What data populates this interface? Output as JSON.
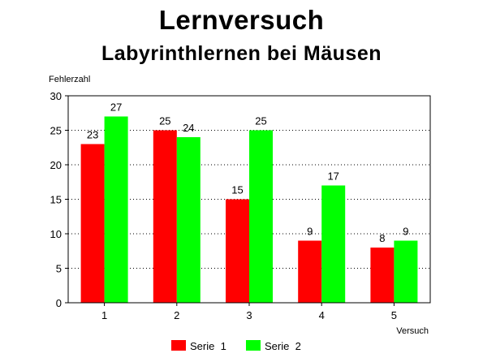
{
  "chart_data": {
    "type": "bar",
    "title": "Lernversuch",
    "subtitle": "Labyrinthlernen bei Mäusen",
    "ylabel": "Fehlerzahl",
    "xlabel": "Versuch",
    "categories": [
      "1",
      "2",
      "3",
      "4",
      "5"
    ],
    "ylim": [
      0,
      30
    ],
    "yticks": [
      "0",
      "5",
      "10",
      "15",
      "20",
      "25",
      "30"
    ],
    "grid": "horizontal-dotted",
    "legend_position": "bottom",
    "series": [
      {
        "name": "Serie  1",
        "color": "#ff0000",
        "values": [
          23,
          25,
          15,
          9,
          8
        ],
        "labels": [
          "23",
          "25",
          "15",
          "9",
          "8"
        ]
      },
      {
        "name": "Serie  2",
        "color": "#00ff00",
        "values": [
          27,
          24,
          25,
          17,
          9
        ],
        "labels": [
          "27",
          "24",
          "25",
          "17",
          "9"
        ]
      }
    ]
  }
}
